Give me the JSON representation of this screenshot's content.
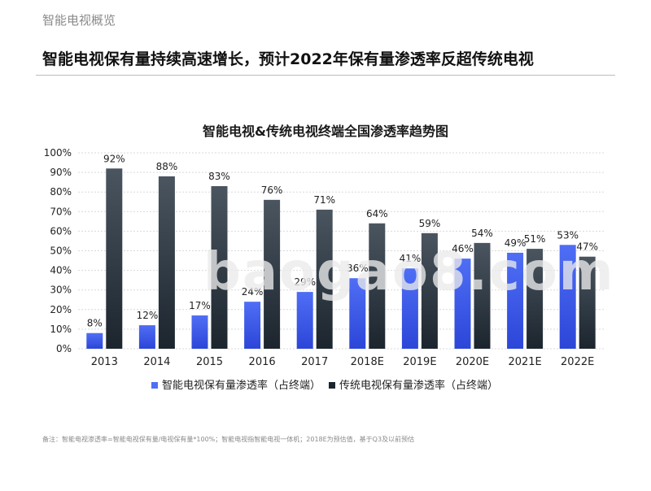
{
  "header": {
    "section": "智能电视概览",
    "headline": "智能电视保有量持续高速增长，预计2022年保有量渗透率反超传统电视"
  },
  "watermark": "baogao8.com",
  "footnote": "备注：智能电视渗透率=智能电视保有量/电视保有量*100%；智能电视指智能电视一体机；2018E为预估值，基于Q3及以前预估",
  "colors": {
    "series1_top": "#4f6ef5",
    "series1_bottom": "#2c46d8",
    "series2_top": "#4a5560",
    "series2_bottom": "#1c252e",
    "grid": "#d9d9d9"
  },
  "chart_data": {
    "type": "bar",
    "title": "智能电视&传统电视终端全国渗透率趋势图",
    "categories": [
      "2013",
      "2014",
      "2015",
      "2016",
      "2017",
      "2018E",
      "2019E",
      "2020E",
      "2021E",
      "2022E"
    ],
    "series": [
      {
        "name": "智能电视保有量渗透率（占终端）",
        "values": [
          8,
          12,
          17,
          24,
          29,
          36,
          41,
          46,
          49,
          53
        ]
      },
      {
        "name": "传统电视保有量渗透率（占终端）",
        "values": [
          92,
          88,
          83,
          76,
          71,
          64,
          59,
          54,
          51,
          47
        ]
      }
    ],
    "ylim": [
      0,
      100
    ],
    "yticks": [
      "0%",
      "10%",
      "20%",
      "30%",
      "40%",
      "50%",
      "60%",
      "70%",
      "80%",
      "90%",
      "100%"
    ],
    "value_suffix": "%",
    "grid": true,
    "legend_position": "bottom"
  }
}
